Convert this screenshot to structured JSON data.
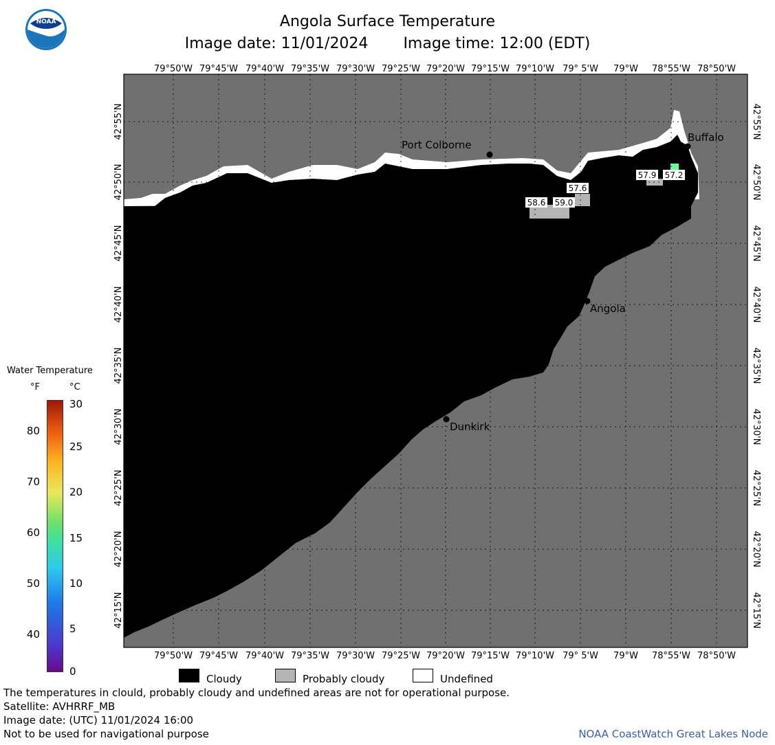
{
  "header": {
    "title": "Angola Surface Temperature",
    "image_date": "Image date: 11/01/2024",
    "image_time": "Image time: 12:00 (EDT)"
  },
  "logo": {
    "text": "NOAA",
    "icon": "noaa-logo-icon"
  },
  "map": {
    "lon_ticks": [
      "79°50'W",
      "79°45'W",
      "79°40'W",
      "79°35'W",
      "79°30'W",
      "79°25'W",
      "79°20'W",
      "79°15'W",
      "79°10'W",
      "79° 5'W",
      "79°W",
      "78°55'W",
      "78°50'W"
    ],
    "lat_ticks": [
      "42°55'N",
      "42°50'N",
      "42°45'N",
      "42°40'N",
      "42°35'N",
      "42°30'N",
      "42°25'N",
      "42°20'N",
      "42°15'N"
    ],
    "cities": [
      {
        "name": "Port Colborne"
      },
      {
        "name": "Buffalo"
      },
      {
        "name": "Angola"
      },
      {
        "name": "Dunkirk"
      }
    ],
    "temps": [
      "57.9",
      "57.2",
      "57.6",
      "58.6",
      "59.0"
    ],
    "colors": {
      "land": "#707070",
      "cloudy": "#000000",
      "probably_cloudy": "#b4b4b4",
      "undefined": "#ffffff"
    }
  },
  "legend": {
    "title": "Water Temperature",
    "unit_f": "°F",
    "unit_c": "°C",
    "f_labels": [
      "80",
      "70",
      "60",
      "50",
      "40"
    ],
    "c_labels": [
      "30",
      "25",
      "20",
      "15",
      "10",
      "5",
      "0"
    ]
  },
  "key": {
    "cloudy": "Cloudy",
    "probably_cloudy": "Probably cloudy",
    "undefined": "Undefined"
  },
  "footer": {
    "line1": "The temperatures in clould, probably cloudy and undefined areas are not for operational purpose.",
    "line2": "Satellite: AVHRRF_MB",
    "line3": "Image date: (UTC) 11/01/2024  16:00",
    "line4": "Not to be used for navigational purpose",
    "credit": "NOAA CoastWatch Great Lakes Node"
  }
}
